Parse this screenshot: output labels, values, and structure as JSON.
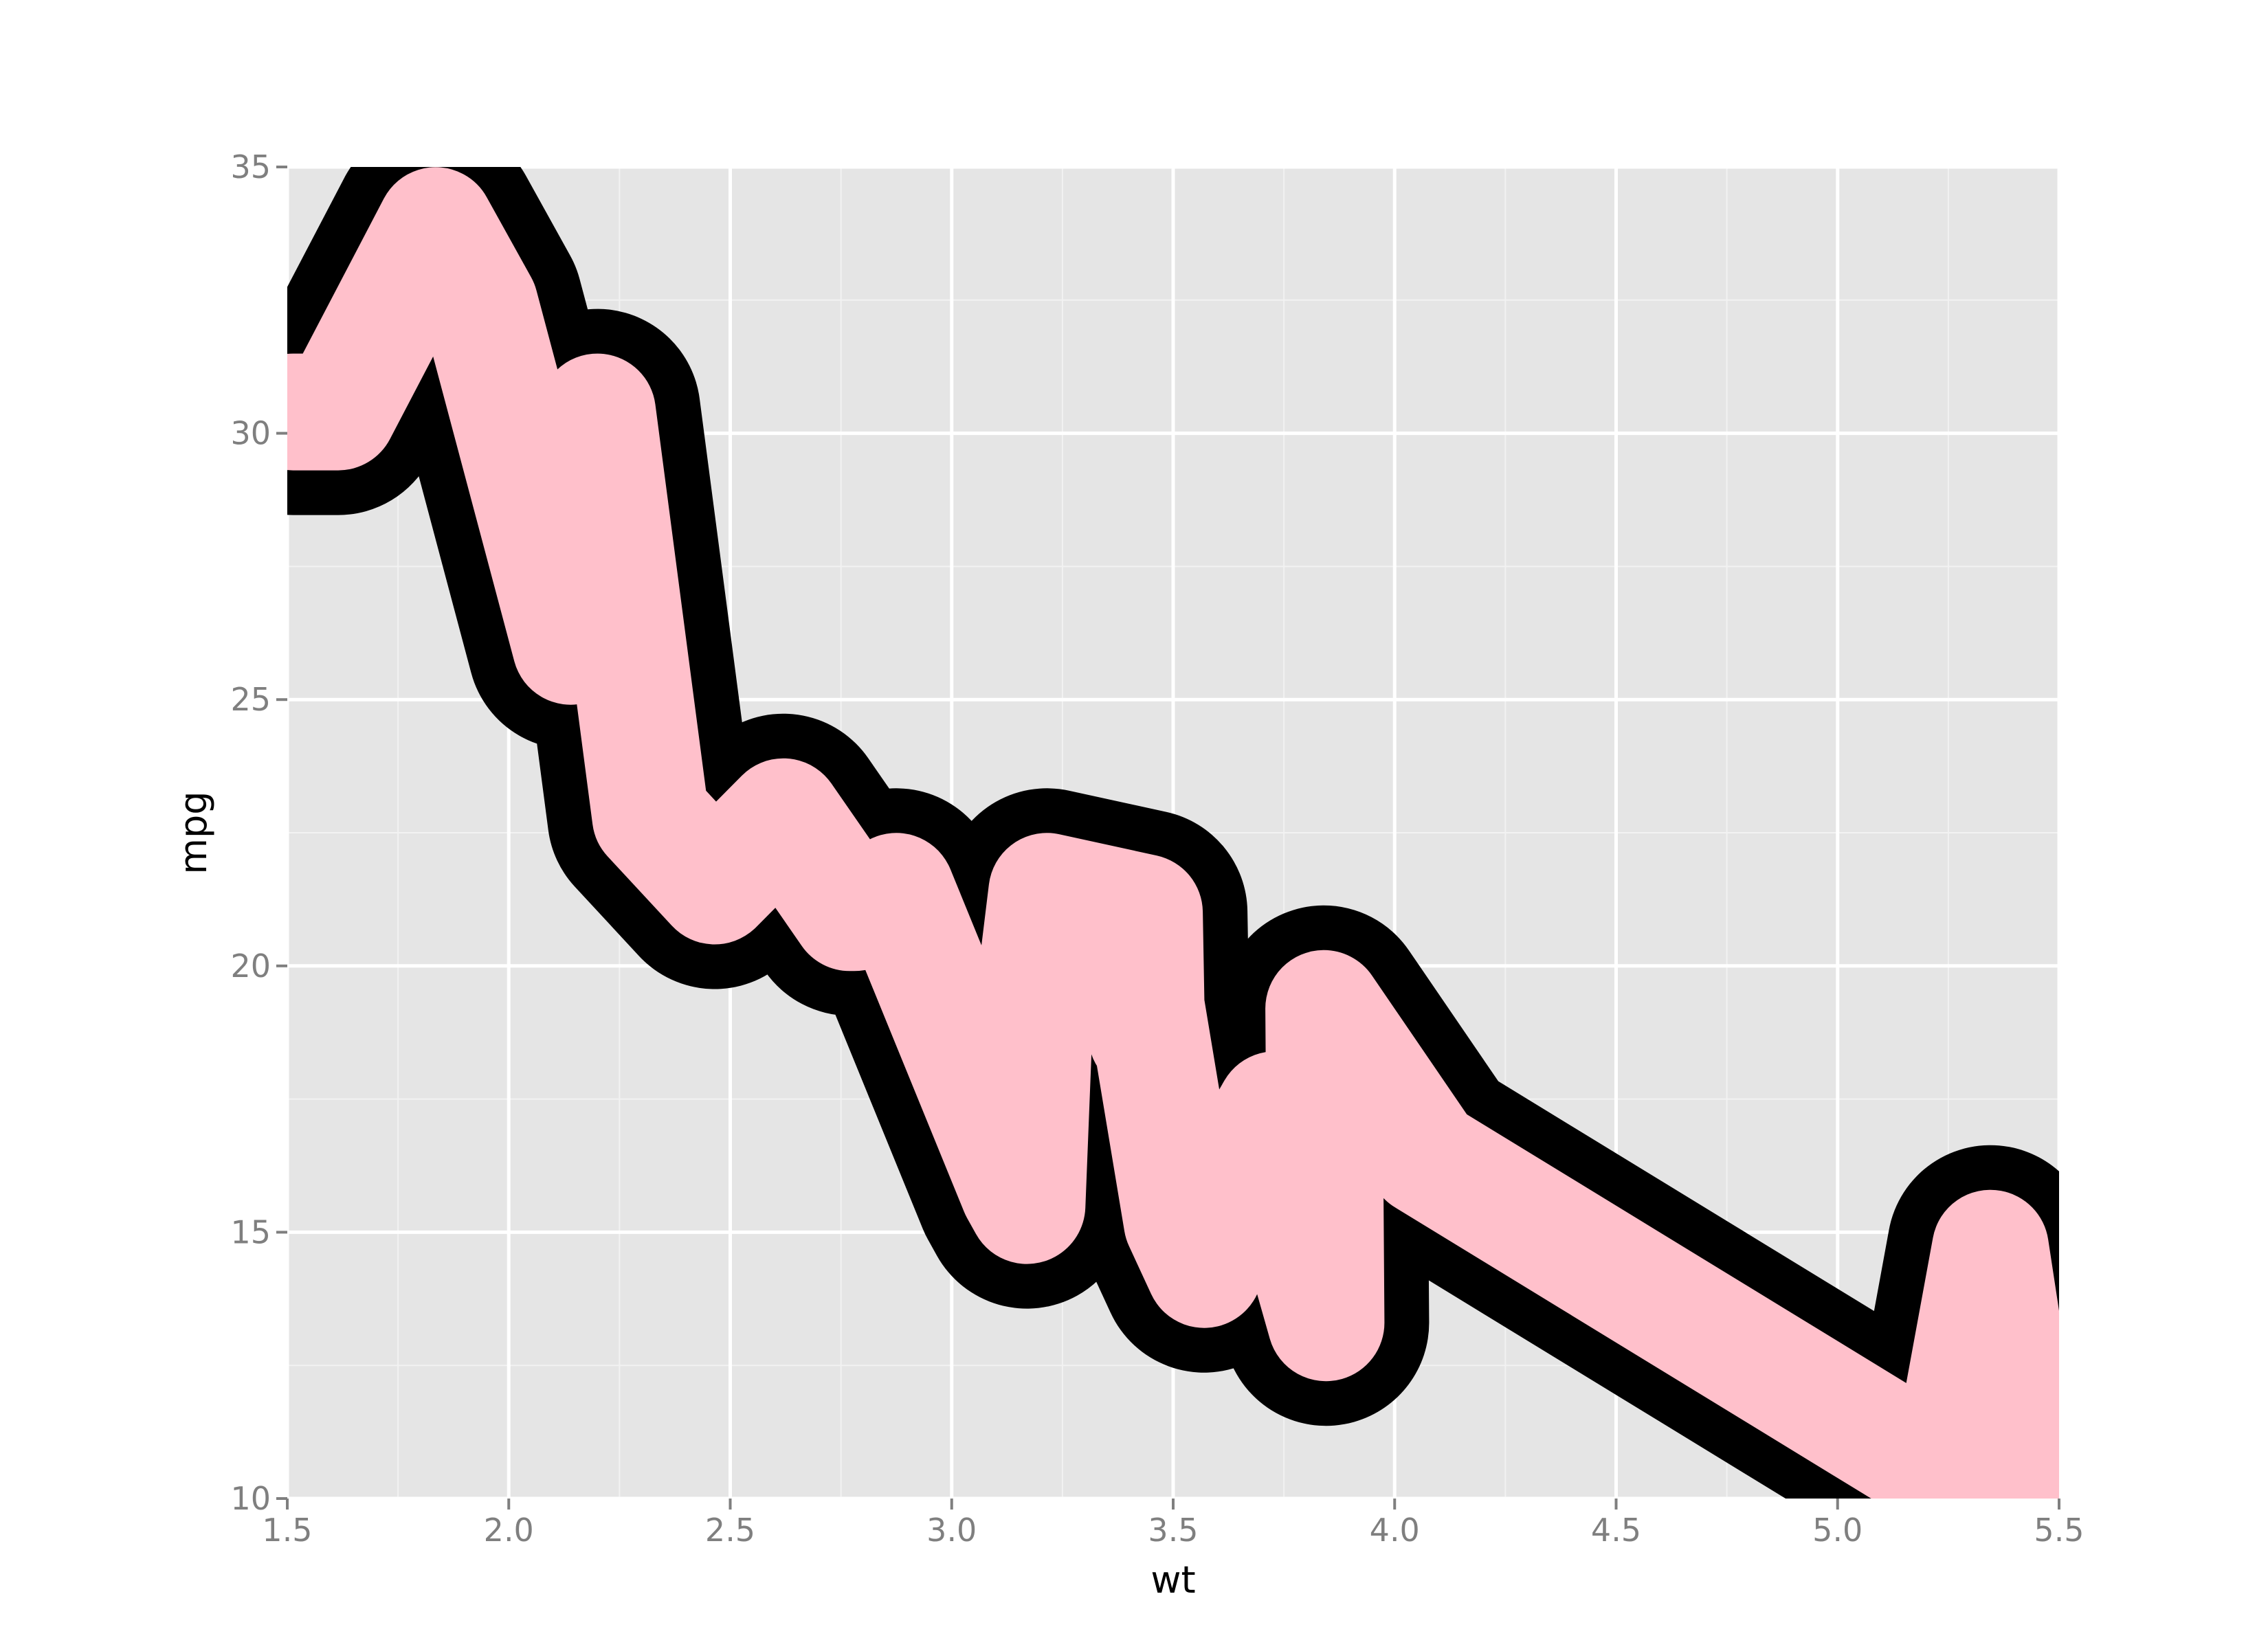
{
  "chart_data": {
    "type": "line",
    "title": "",
    "xlabel": "wt",
    "ylabel": "mpg",
    "xlim": [
      1.5,
      5.5
    ],
    "ylim": [
      10,
      35
    ],
    "x_ticks": [
      "1.5",
      "2.0",
      "2.5",
      "3.0",
      "3.5",
      "4.0",
      "4.5",
      "5.0",
      "5.5"
    ],
    "y_ticks": [
      "10",
      "15",
      "20",
      "25",
      "30",
      "35"
    ],
    "grid": true,
    "legend": "none",
    "panel_background": "#e5e5e5",
    "series": [
      {
        "color": "#000000",
        "x": [
          1.513,
          1.615,
          1.835,
          1.935,
          2.14,
          2.2,
          2.32,
          2.465,
          2.62,
          2.77,
          2.78,
          2.875,
          3.15,
          3.17,
          3.19,
          3.215,
          3.435,
          3.44,
          3.44,
          3.52,
          3.57,
          3.57,
          3.73,
          3.78,
          3.845,
          3.84,
          4.07,
          5.25,
          5.345,
          5.424
        ],
        "y": [
          30.4,
          30.4,
          33.9,
          32.4,
          26.0,
          30.4,
          22.8,
          21.5,
          22.8,
          21.0,
          21.0,
          21.4,
          15.8,
          15.5,
          19.7,
          21.4,
          21.0,
          18.7,
          19.2,
          15.2,
          14.3,
          15.0,
          17.3,
          15.2,
          13.3,
          19.2,
          16.4,
          10.4,
          14.7,
          10.4
        ]
      },
      {
        "color": "#ffc0cb",
        "x": [
          1.513,
          1.615,
          1.835,
          1.935,
          2.14,
          2.2,
          2.32,
          2.465,
          2.62,
          2.77,
          2.78,
          2.875,
          3.15,
          3.17,
          3.19,
          3.215,
          3.435,
          3.44,
          3.44,
          3.52,
          3.57,
          3.57,
          3.73,
          3.78,
          3.845,
          3.84,
          4.07,
          5.25,
          5.345,
          5.424
        ],
        "y": [
          30.4,
          30.4,
          33.9,
          32.4,
          26.0,
          30.4,
          22.8,
          21.5,
          22.8,
          21.0,
          21.0,
          21.4,
          15.8,
          15.5,
          19.7,
          21.4,
          21.0,
          18.7,
          19.2,
          15.2,
          14.3,
          15.0,
          17.3,
          15.2,
          13.3,
          19.2,
          16.4,
          10.4,
          14.7,
          10.4
        ]
      }
    ]
  }
}
